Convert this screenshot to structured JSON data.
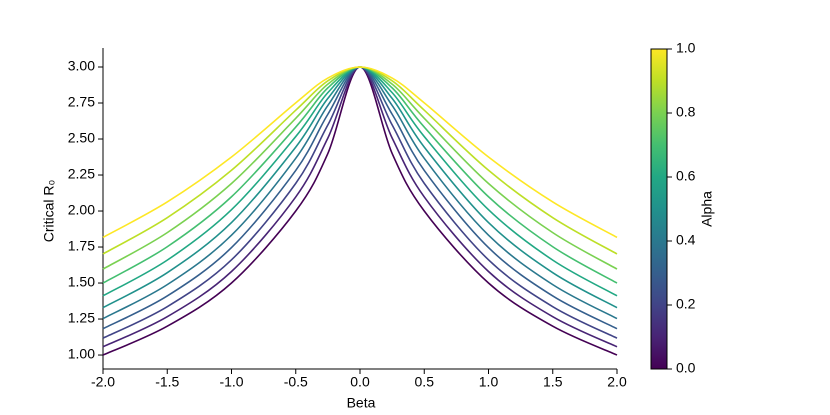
{
  "chart_data": {
    "type": "line",
    "xlabel": "Beta",
    "ylabel": "Critical R₀",
    "x": [
      -2,
      -1.5,
      -1,
      -0.5,
      -0.25,
      0,
      0.25,
      0.5,
      1,
      1.5,
      2
    ],
    "series": [
      {
        "color": "#440154",
        "values": [
          1.0,
          1.2,
          1.5,
          2.0,
          2.4,
          3.0,
          2.4,
          2.0,
          1.5,
          1.2,
          1.0
        ]
      },
      {
        "color": "#482475",
        "values": [
          1.057,
          1.266,
          1.58,
          2.098,
          2.507,
          3.0,
          2.507,
          2.098,
          1.58,
          1.266,
          1.057
        ]
      },
      {
        "color": "#414487",
        "values": [
          1.117,
          1.336,
          1.661,
          2.192,
          2.598,
          3.0,
          2.598,
          2.192,
          1.661,
          1.336,
          1.117
        ]
      },
      {
        "color": "#355f8d",
        "values": [
          1.183,
          1.41,
          1.746,
          2.282,
          2.672,
          3.0,
          2.672,
          2.282,
          1.746,
          1.41,
          1.183
        ]
      },
      {
        "color": "#2a788e",
        "values": [
          1.253,
          1.489,
          1.832,
          2.366,
          2.733,
          3.0,
          2.733,
          2.366,
          1.832,
          1.489,
          1.253
        ]
      },
      {
        "color": "#21918c",
        "values": [
          1.329,
          1.572,
          1.92,
          2.444,
          2.782,
          3.0,
          2.782,
          2.444,
          1.92,
          1.572,
          1.329
        ]
      },
      {
        "color": "#22a884",
        "values": [
          1.411,
          1.659,
          2.009,
          2.517,
          2.822,
          3.0,
          2.822,
          2.517,
          2.009,
          1.659,
          1.411
        ]
      },
      {
        "color": "#44bf70",
        "values": [
          1.5,
          1.752,
          2.099,
          2.583,
          2.855,
          3.0,
          2.855,
          2.583,
          2.099,
          1.752,
          1.5
        ]
      },
      {
        "color": "#7ad151",
        "values": [
          1.597,
          1.85,
          2.191,
          2.644,
          2.881,
          3.0,
          2.881,
          2.644,
          2.191,
          1.85,
          1.597
        ]
      },
      {
        "color": "#bddf26",
        "values": [
          1.702,
          1.954,
          2.283,
          2.7,
          2.904,
          3.0,
          2.904,
          2.7,
          2.283,
          1.954,
          1.702
        ]
      },
      {
        "color": "#fde725",
        "values": [
          1.817,
          2.063,
          2.375,
          2.751,
          2.923,
          3.0,
          2.923,
          2.751,
          2.375,
          2.063,
          1.817
        ]
      }
    ],
    "xlim": [
      -2,
      2
    ],
    "xticks": [
      {
        "value": -2,
        "label": "-2.0"
      },
      {
        "value": -1.5,
        "label": "-1.5"
      },
      {
        "value": -1,
        "label": "-1.0"
      },
      {
        "value": -0.5,
        "label": "-0.5"
      },
      {
        "value": 0,
        "label": "0.0"
      },
      {
        "value": 0.5,
        "label": "0.5"
      },
      {
        "value": 1,
        "label": "1.0"
      },
      {
        "value": 1.5,
        "label": "1.5"
      },
      {
        "value": 2,
        "label": "2.0"
      }
    ],
    "ylim": [
      0.903,
      3.132
    ],
    "yticks": [
      {
        "value": 1,
        "label": "1.00"
      },
      {
        "value": 1.25,
        "label": "1.25"
      },
      {
        "value": 1.5,
        "label": "1.50"
      },
      {
        "value": 1.75,
        "label": "1.75"
      },
      {
        "value": 2,
        "label": "2.00"
      },
      {
        "value": 2.25,
        "label": "2.25"
      },
      {
        "value": 2.5,
        "label": "2.50"
      },
      {
        "value": 2.75,
        "label": "2.75"
      },
      {
        "value": 3,
        "label": "3.00"
      }
    ],
    "colorbar": {
      "label": "Alpha",
      "lim": [
        0,
        1
      ],
      "colors": [
        "#440154",
        "#482475",
        "#414487",
        "#355f8d",
        "#2a788e",
        "#21918c",
        "#22a884",
        "#44bf70",
        "#7ad151",
        "#bddf26",
        "#fde725"
      ],
      "ticks": [
        {
          "value": 0,
          "label": "0.0"
        },
        {
          "value": 0.2,
          "label": "0.2"
        },
        {
          "value": 0.4,
          "label": "0.4"
        },
        {
          "value": 0.6,
          "label": "0.6"
        },
        {
          "value": 0.8,
          "label": "0.8"
        },
        {
          "value": 1,
          "label": "1.0"
        }
      ]
    }
  }
}
